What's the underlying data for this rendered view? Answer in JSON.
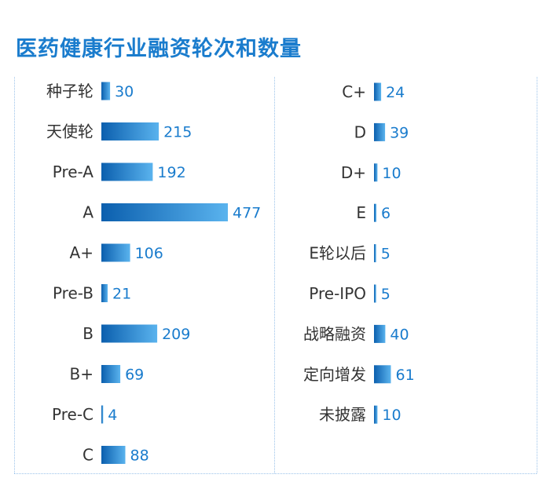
{
  "title": "医药健康行业融资轮次和数量",
  "colors": {
    "title": "#1a7ccd",
    "bar_dark": "#0b5fae",
    "bar_light": "#5ab3ee",
    "value_text": "#1a7ccd",
    "label_text": "#333333",
    "divider": "#9cc3ea"
  },
  "chart_data": {
    "type": "bar",
    "orientation": "horizontal",
    "title": "医药健康行业融资轮次和数量",
    "columns": [
      {
        "categories": [
          "种子轮",
          "天使轮",
          "Pre-A",
          "A",
          "A+",
          "Pre-B",
          "B",
          "B+",
          "Pre-C",
          "C"
        ],
        "values": [
          30,
          215,
          192,
          477,
          106,
          21,
          209,
          69,
          4,
          88
        ]
      },
      {
        "categories": [
          "C+",
          "D",
          "D+",
          "E",
          "E轮以后",
          "Pre-IPO",
          "战略融资",
          "定向增发",
          "未披露"
        ],
        "values": [
          24,
          39,
          10,
          6,
          5,
          5,
          40,
          61,
          10
        ]
      }
    ]
  }
}
